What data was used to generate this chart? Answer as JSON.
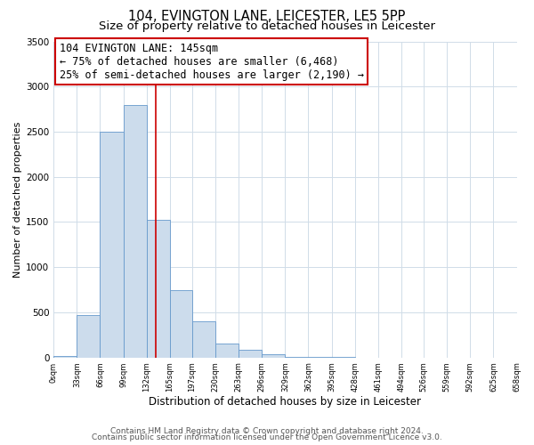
{
  "title": "104, EVINGTON LANE, LEICESTER, LE5 5PP",
  "subtitle": "Size of property relative to detached houses in Leicester",
  "xlabel": "Distribution of detached houses by size in Leicester",
  "ylabel": "Number of detached properties",
  "bar_edges": [
    0,
    33,
    66,
    99,
    132,
    165,
    197,
    230,
    263,
    296,
    329,
    362,
    395,
    428,
    461,
    494,
    526,
    559,
    592,
    625,
    658
  ],
  "bar_heights": [
    20,
    470,
    2500,
    2800,
    1520,
    750,
    400,
    155,
    80,
    35,
    5,
    5,
    5,
    0,
    0,
    0,
    0,
    0,
    0,
    0
  ],
  "bar_color": "#ccdcec",
  "bar_edge_color": "#6699cc",
  "vline_x": 145,
  "vline_color": "#cc0000",
  "annotation_box_text": "104 EVINGTON LANE: 145sqm\n← 75% of detached houses are smaller (6,468)\n25% of semi-detached houses are larger (2,190) →",
  "annotation_box_color": "#cc0000",
  "annotation_text_fontsize": 8.5,
  "ylim": [
    0,
    3500
  ],
  "yticks": [
    0,
    500,
    1000,
    1500,
    2000,
    2500,
    3000,
    3500
  ],
  "bar_edge_values": [
    0,
    33,
    66,
    99,
    132,
    165,
    197,
    230,
    263,
    296,
    329,
    362,
    395,
    428,
    461,
    494,
    526,
    559,
    592,
    625,
    658
  ],
  "xtick_labels": [
    "0sqm",
    "33sqm",
    "66sqm",
    "99sqm",
    "132sqm",
    "165sqm",
    "197sqm",
    "230sqm",
    "263sqm",
    "296sqm",
    "329sqm",
    "362sqm",
    "395sqm",
    "428sqm",
    "461sqm",
    "494sqm",
    "526sqm",
    "559sqm",
    "592sqm",
    "625sqm",
    "658sqm"
  ],
  "footer_line1": "Contains HM Land Registry data © Crown copyright and database right 2024.",
  "footer_line2": "Contains public sector information licensed under the Open Government Licence v3.0.",
  "bg_color": "#ffffff",
  "grid_color": "#d0dce8",
  "title_fontsize": 10.5,
  "subtitle_fontsize": 9.5,
  "xlabel_fontsize": 8.5,
  "ylabel_fontsize": 8,
  "footer_fontsize": 6.5
}
